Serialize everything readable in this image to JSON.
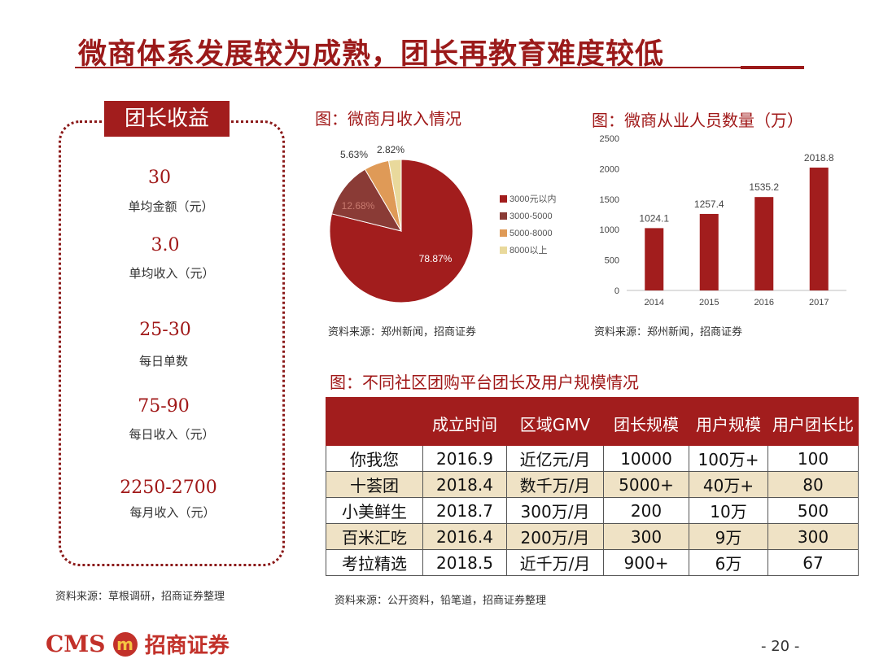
{
  "slide": {
    "title": "微商体系发展较为成熟，团长再教育难度较低",
    "page_number": "- 20 -"
  },
  "left_panel": {
    "label": "团长收益",
    "metrics": [
      {
        "value": "30",
        "caption": "单均金额（元）"
      },
      {
        "value": "3.0",
        "caption": "单均收入（元）"
      },
      {
        "value": "25-30",
        "caption": "每日单数"
      },
      {
        "value": "75-90",
        "caption": "每日收入（元）"
      },
      {
        "value": "2250-2700",
        "caption": "每月收入（元）"
      }
    ],
    "source": "资料来源：草根调研，招商证券整理"
  },
  "pie": {
    "title": "图：微商月收入情况",
    "source": "资料来源：郑州新闻，招商证券"
  },
  "bar": {
    "title": "图：微商从业人员数量（万）",
    "source": "资料来源：郑州新闻，招商证券"
  },
  "table": {
    "title": "图：不同社区团购平台团长及用户规模情况",
    "source": "资料来源：公开资料，铅笔道，招商证券整理",
    "headers": [
      "",
      "成立时间",
      "区域GMV",
      "团长规模",
      "用户规模",
      "用户团长比"
    ],
    "rows": [
      [
        "你我您",
        "2016.9",
        "近亿元/月",
        "10000",
        "100万+",
        "100"
      ],
      [
        "十荟团",
        "2018.4",
        "数千万/月",
        "5000+",
        "40万+",
        "80"
      ],
      [
        "小美鲜生",
        "2018.7",
        "300万/月",
        "200",
        "10万",
        "500"
      ],
      [
        "百米汇吃",
        "2016.4",
        "200万/月",
        "300",
        "9万",
        "300"
      ],
      [
        "考拉精选",
        "2018.5",
        "近千万/月",
        "900+",
        "6万",
        "67"
      ]
    ]
  },
  "logo": {
    "text": "CMS",
    "cn": "招商证券",
    "emblem": "m"
  },
  "chart_data": [
    {
      "type": "pie",
      "categories": [
        "3000元以内",
        "3000-5000",
        "5000-8000",
        "8000以上"
      ],
      "values": [
        78.87,
        12.68,
        5.63,
        2.82
      ],
      "labels": [
        "78.87%",
        "12.68%",
        "5.63%",
        "2.82%"
      ],
      "colors": [
        "#a21d1d",
        "#8a3b36",
        "#df9a57",
        "#e9d99c"
      ],
      "legend": "right"
    },
    {
      "type": "bar",
      "categories": [
        "2014",
        "2015",
        "2016",
        "2017"
      ],
      "values": [
        1024.1,
        1257.4,
        1535.2,
        2018.8
      ],
      "value_labels": [
        "1024.1",
        "1257.4",
        "1535.2",
        "2018.8"
      ],
      "ylim": [
        0,
        2500
      ],
      "yticks": [
        "0",
        "500",
        "1000",
        "1500",
        "2000",
        "2500"
      ],
      "ytick_values": [
        0,
        500,
        1000,
        1500,
        2000,
        2500
      ],
      "color": "#a21d1d",
      "grid": false
    }
  ]
}
